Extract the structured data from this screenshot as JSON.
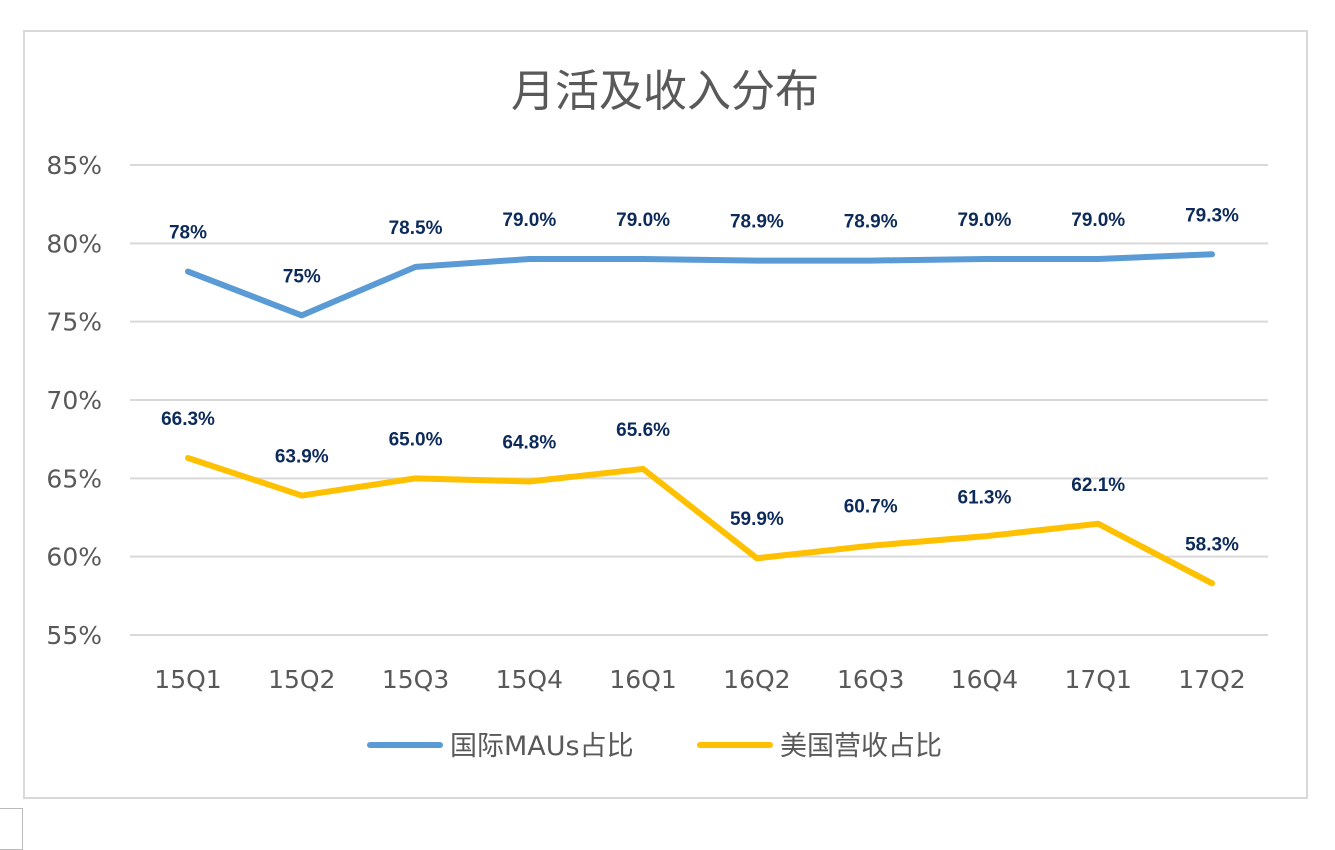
{
  "chart_data": {
    "type": "line",
    "title": "月活及收入分布",
    "xlabel": "",
    "ylabel": "",
    "categories": [
      "15Q1",
      "15Q2",
      "15Q3",
      "15Q4",
      "16Q1",
      "16Q2",
      "16Q3",
      "16Q4",
      "17Q1",
      "17Q2"
    ],
    "y_ticks": [
      "55%",
      "60%",
      "65%",
      "70%",
      "75%",
      "80%",
      "85%"
    ],
    "y_tick_values": [
      55,
      60,
      65,
      70,
      75,
      80,
      85
    ],
    "ylim": [
      55,
      85
    ],
    "grid": true,
    "legend_position": "bottom",
    "series": [
      {
        "name": "国际MAUs占比",
        "color": "#5b9bd5",
        "values": [
          78.2,
          75.4,
          78.5,
          79.0,
          79.0,
          78.9,
          78.9,
          79.0,
          79.0,
          79.3
        ],
        "labels": [
          "78%",
          "75%",
          "78.5%",
          "79.0%",
          "79.0%",
          "78.9%",
          "78.9%",
          "79.0%",
          "79.0%",
          "79.3%"
        ]
      },
      {
        "name": "美国营收占比",
        "color": "#ffc000",
        "values": [
          66.3,
          63.9,
          65.0,
          64.8,
          65.6,
          59.9,
          60.7,
          61.3,
          62.1,
          58.3
        ],
        "labels": [
          "66.3%",
          "63.9%",
          "65.0%",
          "64.8%",
          "65.6%",
          "59.9%",
          "60.7%",
          "61.3%",
          "62.1%",
          "58.3%"
        ]
      }
    ]
  }
}
